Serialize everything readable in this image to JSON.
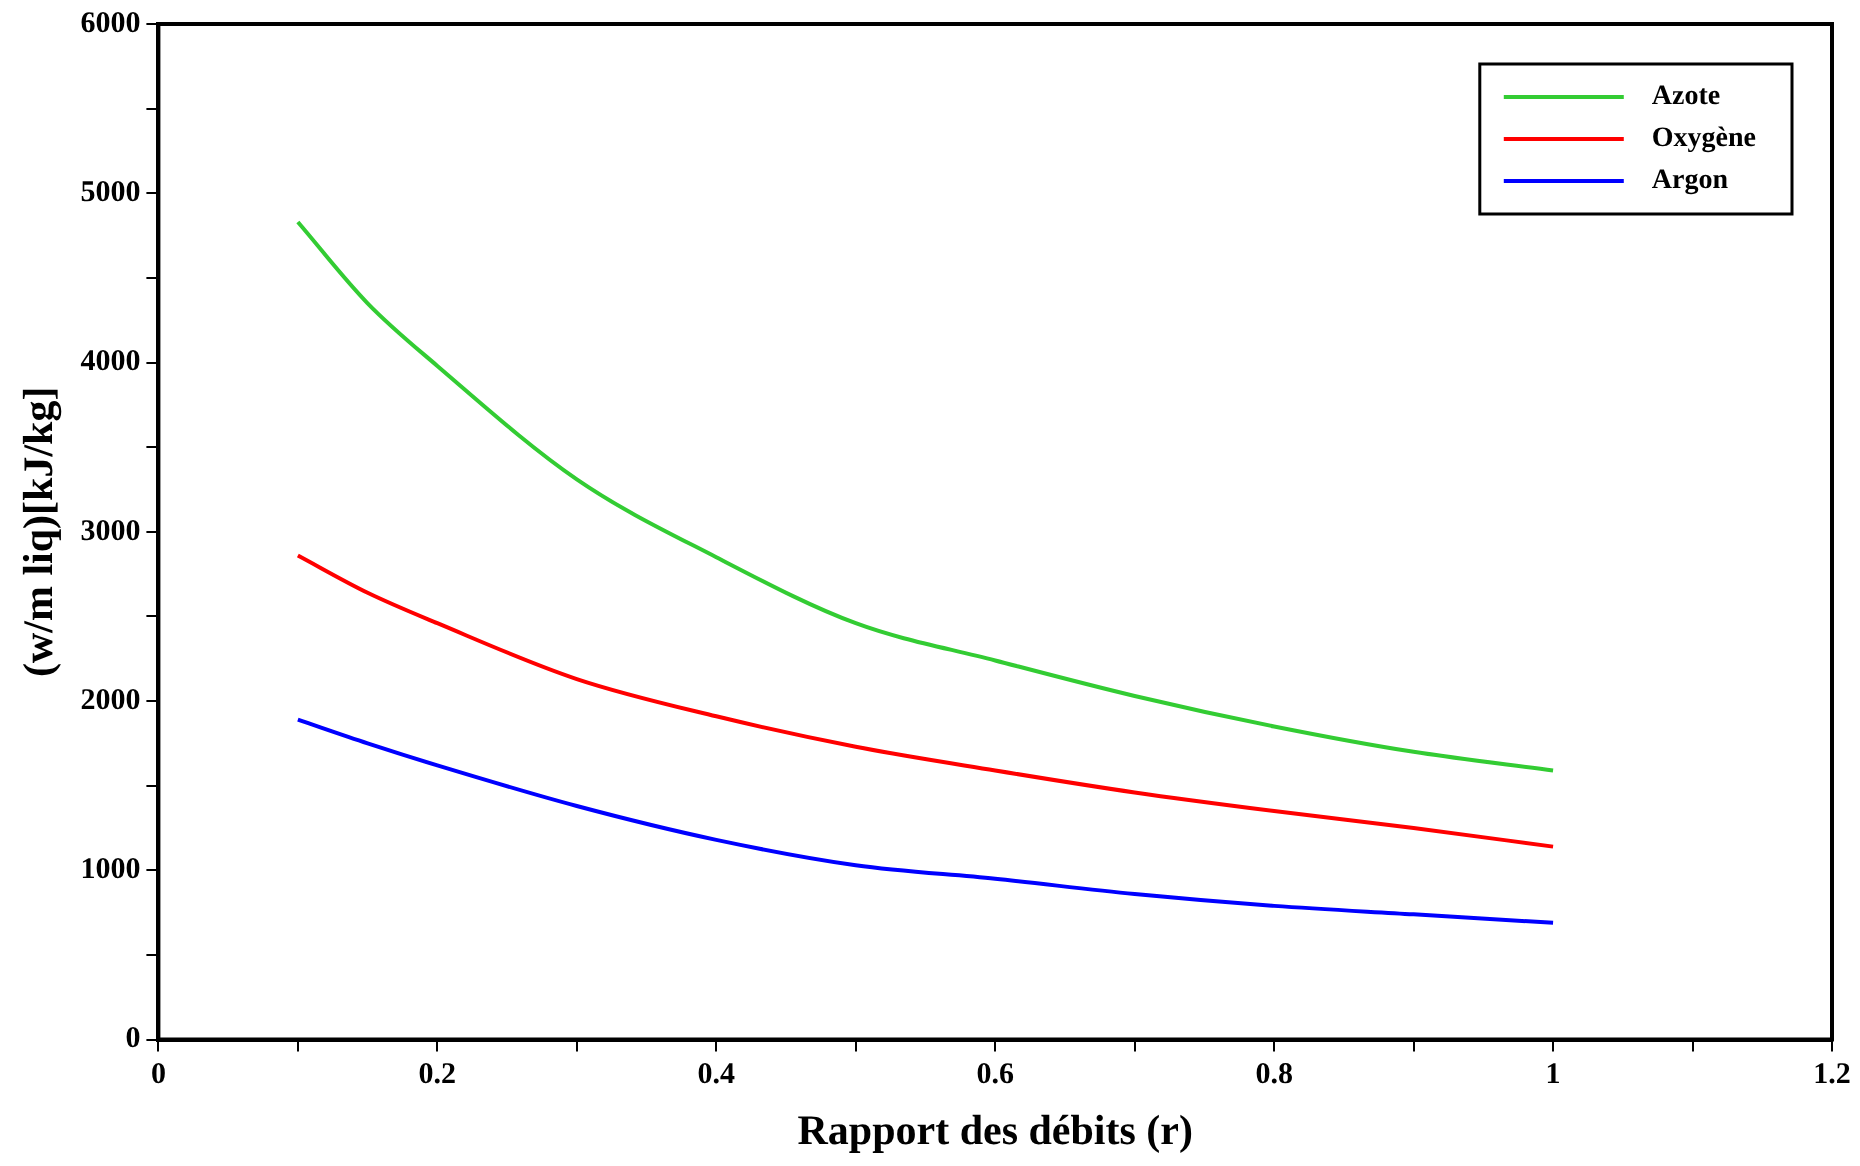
{
  "chart_data": {
    "type": "line",
    "xlabel": "Rapport des débits (r)",
    "ylabel": "(w/m liq)[kJ/kg]",
    "xlim": [
      0,
      1.2
    ],
    "ylim": [
      0,
      6000
    ],
    "xticks": [
      0,
      {
        "value": 0.1,
        "label": null
      },
      0.2,
      {
        "value": 0.3,
        "label": null
      },
      0.4,
      {
        "value": 0.5,
        "label": null
      },
      0.6,
      {
        "value": 0.7,
        "label": null
      },
      0.8,
      {
        "value": 0.9,
        "label": null
      },
      1,
      {
        "value": 1.1,
        "label": null
      },
      1.2
    ],
    "yticks": [
      0,
      {
        "value": 500,
        "label": null
      },
      1000,
      {
        "value": 1500,
        "label": null
      },
      2000,
      {
        "value": 2500,
        "label": null
      },
      3000,
      {
        "value": 3500,
        "label": null
      },
      4000,
      {
        "value": 4500,
        "label": null
      },
      5000,
      {
        "value": 5500,
        "label": null
      },
      6000
    ],
    "x": [
      0.1,
      0.15,
      0.2,
      0.3,
      0.4,
      0.5,
      0.6,
      0.7,
      0.8,
      0.9,
      1.0
    ],
    "series": [
      {
        "name": "Azote",
        "color": "#33cc33",
        "values": [
          4830,
          4350,
          3980,
          3310,
          2850,
          2460,
          2240,
          2030,
          1850,
          1700,
          1590
        ]
      },
      {
        "name": "Oxygène",
        "color": "#ff0000",
        "values": [
          2860,
          2640,
          2460,
          2130,
          1910,
          1730,
          1590,
          1460,
          1350,
          1250,
          1140
        ]
      },
      {
        "name": "Argon",
        "color": "#0000ff",
        "values": [
          1890,
          1750,
          1620,
          1380,
          1180,
          1030,
          950,
          860,
          790,
          740,
          690
        ]
      }
    ],
    "legend": "top right",
    "grid": false,
    "marker": "none",
    "line_style": "solid"
  }
}
